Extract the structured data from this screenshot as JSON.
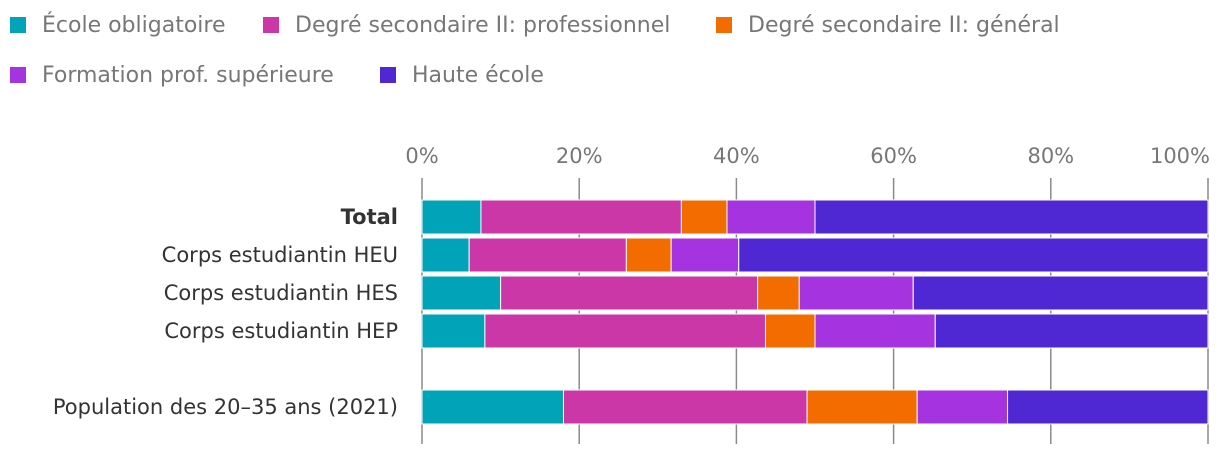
{
  "chart_data": {
    "type": "bar",
    "orientation": "horizontal",
    "stacked": true,
    "categories": [
      "Total",
      "Corps estudiantin HEU",
      "Corps estudiantin HES",
      "Corps estudiantin HEP",
      "Population des 20–35 ans (2021)"
    ],
    "bold_categories": [
      "Total"
    ],
    "series": [
      {
        "name": "École obligatoire",
        "color": "#00a3b8",
        "values": [
          7.5,
          6.0,
          10.0,
          8.0,
          18.0
        ]
      },
      {
        "name": "Degré secondaire II: professionnel",
        "color": "#cc37a8",
        "values": [
          25.5,
          20.0,
          32.7,
          35.7,
          31.0
        ]
      },
      {
        "name": "Degré secondaire II: général",
        "color": "#f26c00",
        "values": [
          5.8,
          5.7,
          5.3,
          6.3,
          14.0
        ]
      },
      {
        "name": "Formation prof. supérieure",
        "color": "#a533e0",
        "values": [
          11.2,
          8.6,
          14.5,
          15.3,
          11.5
        ]
      },
      {
        "name": "Haute école",
        "color": "#4f27d3",
        "values": [
          50.0,
          59.7,
          37.5,
          34.7,
          25.5
        ]
      }
    ],
    "xlim": [
      0,
      100
    ],
    "x_ticks": [
      "0%",
      "20%",
      "40%",
      "60%",
      "80%",
      "100%"
    ],
    "legend_position": "top-left",
    "grid": true
  }
}
